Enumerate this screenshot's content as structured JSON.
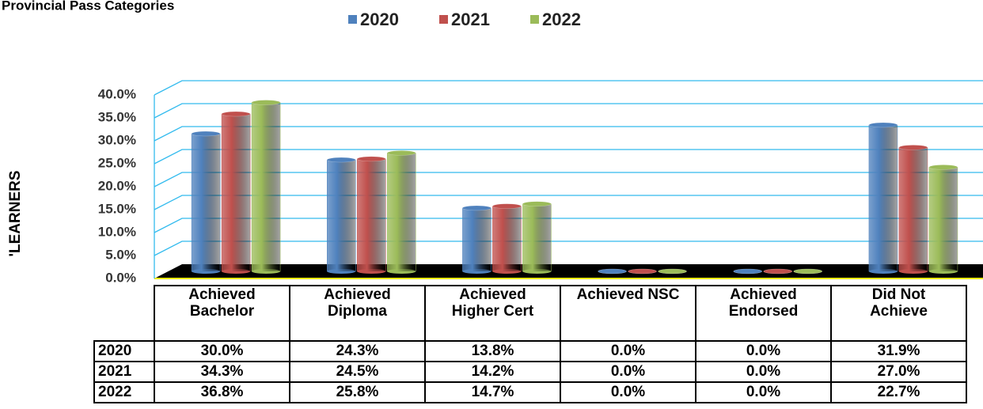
{
  "chart_data": {
    "type": "bar",
    "title": "Provincial Pass Categories",
    "y_label": "'LEARNERS",
    "categories": [
      "Achieved Bachelor",
      "Achieved Diploma",
      "Achieved Higher Cert",
      "Achieved NSC",
      "Achieved Endorsed",
      "Did Not Achieve"
    ],
    "series": [
      {
        "name": "2020",
        "color": "#4f81bd",
        "values": [
          30.0,
          24.3,
          13.8,
          0.0,
          0.0,
          31.9
        ],
        "value_labels": [
          "30.0%",
          "24.3%",
          "13.8%",
          "0.0%",
          "0.0%",
          "31.9%"
        ]
      },
      {
        "name": "2021",
        "color": "#c0504d",
        "values": [
          34.3,
          24.5,
          14.2,
          0.0,
          0.0,
          27.0
        ],
        "value_labels": [
          "34.3%",
          "24.5%",
          "14.2%",
          "0.0%",
          "0.0%",
          "27.0%"
        ]
      },
      {
        "name": "2022",
        "color": "#9bbb59",
        "values": [
          36.8,
          25.8,
          14.7,
          0.0,
          0.0,
          22.7
        ],
        "value_labels": [
          "36.8%",
          "25.8%",
          "14.7%",
          "0.0%",
          "0.0%",
          "22.7%"
        ]
      }
    ],
    "ylim": [
      0,
      40
    ],
    "yticks": [
      {
        "value": 0,
        "label": "0.0%"
      },
      {
        "value": 5,
        "label": "5.0%"
      },
      {
        "value": 10,
        "label": "10.0%"
      },
      {
        "value": 15,
        "label": "15.0%"
      },
      {
        "value": 20,
        "label": "20.0%"
      },
      {
        "value": 25,
        "label": "25.0%"
      },
      {
        "value": 30,
        "label": "30.0%"
      },
      {
        "value": 35,
        "label": "35.0%"
      },
      {
        "value": 40,
        "label": "40.0%"
      }
    ],
    "grid": true,
    "legend": "top"
  }
}
